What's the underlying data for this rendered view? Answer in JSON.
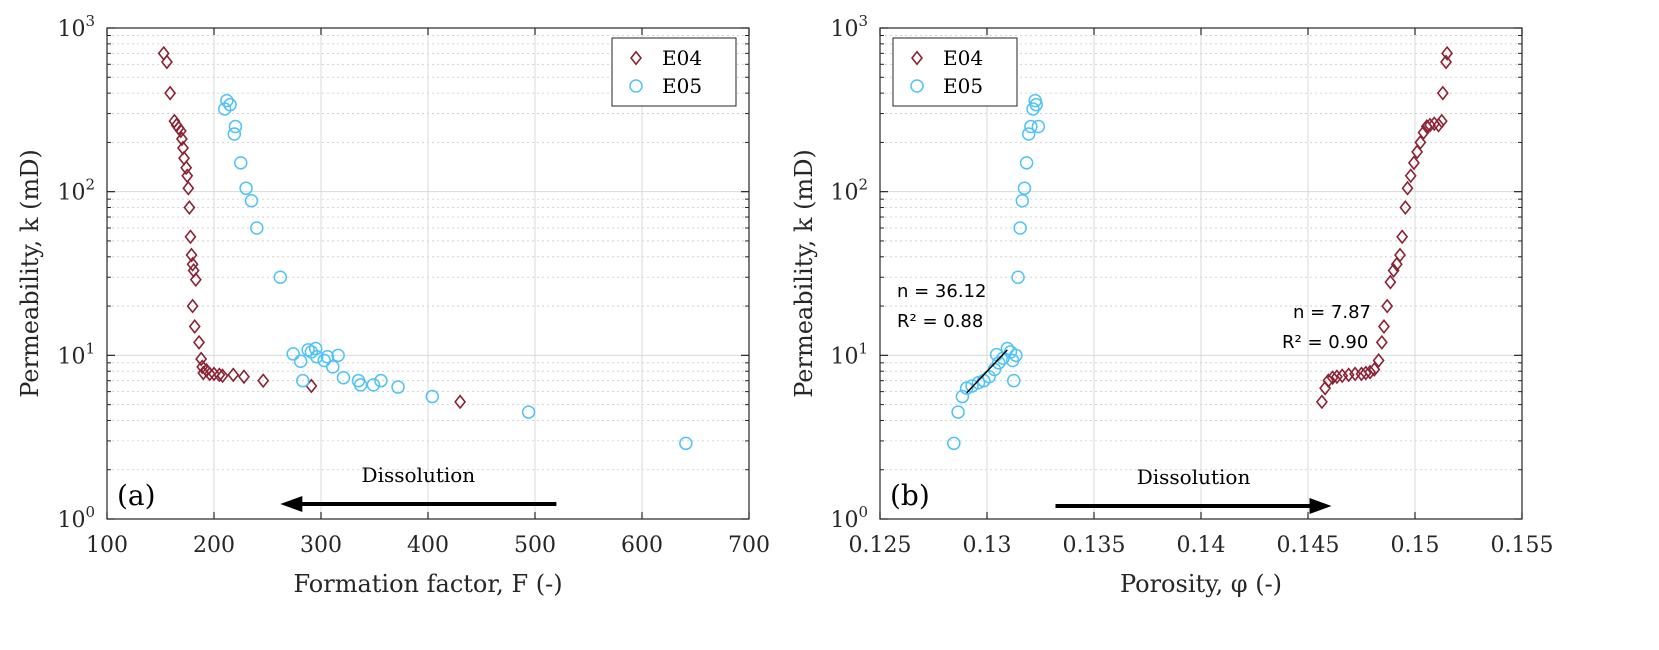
{
  "chart_data": [
    {
      "type": "scatter",
      "panel_label": "(a)",
      "xlabel": "Formation factor, F (-)",
      "ylabel": "Permeability, k (mD)",
      "xlim": [
        100,
        700
      ],
      "ylim": [
        1,
        1000
      ],
      "yscale": "log",
      "xticks": [
        "100",
        "200",
        "300",
        "400",
        "500",
        "600",
        "700"
      ],
      "yticks": [
        "10^0",
        "10^1",
        "10^2",
        "10^3"
      ],
      "grid": true,
      "legend": {
        "position": "top-right",
        "entries": [
          "E04",
          "E05"
        ]
      },
      "annotation": {
        "text": "Dissolution",
        "arrow_from_x": 520,
        "arrow_to_x": 262,
        "arrow_y": 1.8
      },
      "series": [
        {
          "name": "E04",
          "marker": "diamond",
          "color": "#8B2232",
          "points": [
            [
              153,
              700
            ],
            [
              156,
              620
            ],
            [
              159,
              400
            ],
            [
              163,
              270
            ],
            [
              165,
              255
            ],
            [
              167,
              245
            ],
            [
              169,
              235
            ],
            [
              170,
              210
            ],
            [
              171,
              185
            ],
            [
              172,
              160
            ],
            [
              174,
              140
            ],
            [
              175,
              125
            ],
            [
              176,
              105
            ],
            [
              177,
              80
            ],
            [
              178,
              53
            ],
            [
              179,
              41
            ],
            [
              180,
              36
            ],
            [
              181,
              33
            ],
            [
              183,
              29
            ],
            [
              180,
              20
            ],
            [
              182,
              15
            ],
            [
              186,
              12
            ],
            [
              188,
              9.5
            ],
            [
              189,
              8.5
            ],
            [
              190,
              7.8
            ],
            [
              193,
              8.1
            ],
            [
              196,
              7.7
            ],
            [
              200,
              7.7
            ],
            [
              205,
              7.6
            ],
            [
              208,
              7.5
            ],
            [
              218,
              7.6
            ],
            [
              228,
              7.4
            ],
            [
              246,
              7.0
            ],
            [
              291,
              6.5
            ],
            [
              430,
              5.2
            ]
          ]
        },
        {
          "name": "E05",
          "marker": "circle",
          "color": "#4FC3F7",
          "points": [
            [
              212,
              360
            ],
            [
              210,
              320
            ],
            [
              215,
              340
            ],
            [
              220,
              250
            ],
            [
              219,
              225
            ],
            [
              225,
              150
            ],
            [
              230,
              105
            ],
            [
              235,
              88
            ],
            [
              240,
              60
            ],
            [
              262,
              30
            ],
            [
              274,
              10.2
            ],
            [
              281,
              9.2
            ],
            [
              283,
              7.0
            ],
            [
              288,
              10.8
            ],
            [
              291,
              10.5
            ],
            [
              295,
              11.0
            ],
            [
              296,
              9.8
            ],
            [
              303,
              9.3
            ],
            [
              306,
              9.8
            ],
            [
              311,
              8.5
            ],
            [
              316,
              10.0
            ],
            [
              321,
              7.3
            ],
            [
              335,
              7.0
            ],
            [
              337,
              6.6
            ],
            [
              349,
              6.6
            ],
            [
              356,
              7.0
            ],
            [
              372,
              6.4
            ],
            [
              404,
              5.6
            ],
            [
              494,
              4.5
            ],
            [
              641,
              2.9
            ]
          ]
        }
      ]
    },
    {
      "type": "scatter",
      "panel_label": "(b)",
      "xlabel": "Porosity, φ (-)",
      "ylabel": "Permeability, k (mD)",
      "xlim": [
        0.125,
        0.155
      ],
      "ylim": [
        1,
        1000
      ],
      "yscale": "log",
      "xticks": [
        "0.125",
        "0.13",
        "0.135",
        "0.14",
        "0.145",
        "0.15",
        "0.155"
      ],
      "yticks": [
        "10^0",
        "10^1",
        "10^2",
        "10^3"
      ],
      "grid": true,
      "legend": {
        "position": "top-left",
        "entries": [
          "E04",
          "E05"
        ]
      },
      "annotation": {
        "text": "Dissolution",
        "arrow_from_x": 0.1332,
        "arrow_to_x": 0.1461,
        "arrow_y": 1.7
      },
      "fits": [
        {
          "n_text": "n = 36.12",
          "r2_text": "R² = 0.88",
          "line": [
            [
              0.12905,
              5.9
            ],
            [
              0.13095,
              10.8
            ]
          ]
        },
        {
          "n_text": "n = 7.87",
          "r2_text": "R² = 0.90"
        }
      ],
      "series": [
        {
          "name": "E04",
          "marker": "diamond",
          "color": "#8B2232",
          "points": [
            [
              0.14565,
              5.2
            ],
            [
              0.1458,
              6.3
            ],
            [
              0.14595,
              7.0
            ],
            [
              0.14615,
              7.3
            ],
            [
              0.14635,
              7.4
            ],
            [
              0.1466,
              7.5
            ],
            [
              0.1469,
              7.6
            ],
            [
              0.1472,
              7.7
            ],
            [
              0.1475,
              7.7
            ],
            [
              0.1477,
              7.8
            ],
            [
              0.1479,
              7.9
            ],
            [
              0.1481,
              8.2
            ],
            [
              0.1483,
              9.3
            ],
            [
              0.14845,
              12
            ],
            [
              0.14855,
              15
            ],
            [
              0.1487,
              20
            ],
            [
              0.14885,
              28
            ],
            [
              0.149,
              33
            ],
            [
              0.14915,
              36
            ],
            [
              0.1493,
              41
            ],
            [
              0.1494,
              53
            ],
            [
              0.14955,
              80
            ],
            [
              0.14965,
              105
            ],
            [
              0.1498,
              125
            ],
            [
              0.14995,
              150
            ],
            [
              0.1501,
              175
            ],
            [
              0.15025,
              200
            ],
            [
              0.1504,
              230
            ],
            [
              0.15055,
              250
            ],
            [
              0.1507,
              255
            ],
            [
              0.1509,
              260
            ],
            [
              0.1511,
              255
            ],
            [
              0.15125,
              270
            ],
            [
              0.1513,
              400
            ],
            [
              0.15145,
              620
            ],
            [
              0.1515,
              700
            ]
          ]
        },
        {
          "name": "E05",
          "marker": "circle",
          "color": "#4FC3F7",
          "points": [
            [
              0.12845,
              2.9
            ],
            [
              0.12865,
              4.5
            ],
            [
              0.12885,
              5.6
            ],
            [
              0.12905,
              6.3
            ],
            [
              0.1293,
              6.5
            ],
            [
              0.1296,
              6.8
            ],
            [
              0.12985,
              7.0
            ],
            [
              0.1301,
              7.4
            ],
            [
              0.13035,
              8.2
            ],
            [
              0.13055,
              9.0
            ],
            [
              0.13075,
              9.6
            ],
            [
              0.13045,
              10.1
            ],
            [
              0.13095,
              11.0
            ],
            [
              0.1311,
              10.5
            ],
            [
              0.1312,
              9.3
            ],
            [
              0.13125,
              7.0
            ],
            [
              0.13135,
              10.0
            ],
            [
              0.13145,
              30
            ],
            [
              0.13155,
              60
            ],
            [
              0.13165,
              88
            ],
            [
              0.13175,
              105
            ],
            [
              0.13185,
              150
            ],
            [
              0.13195,
              225
            ],
            [
              0.13205,
              250
            ],
            [
              0.13215,
              320
            ],
            [
              0.13225,
              360
            ],
            [
              0.1323,
              340
            ],
            [
              0.1324,
              250
            ]
          ]
        }
      ]
    }
  ]
}
